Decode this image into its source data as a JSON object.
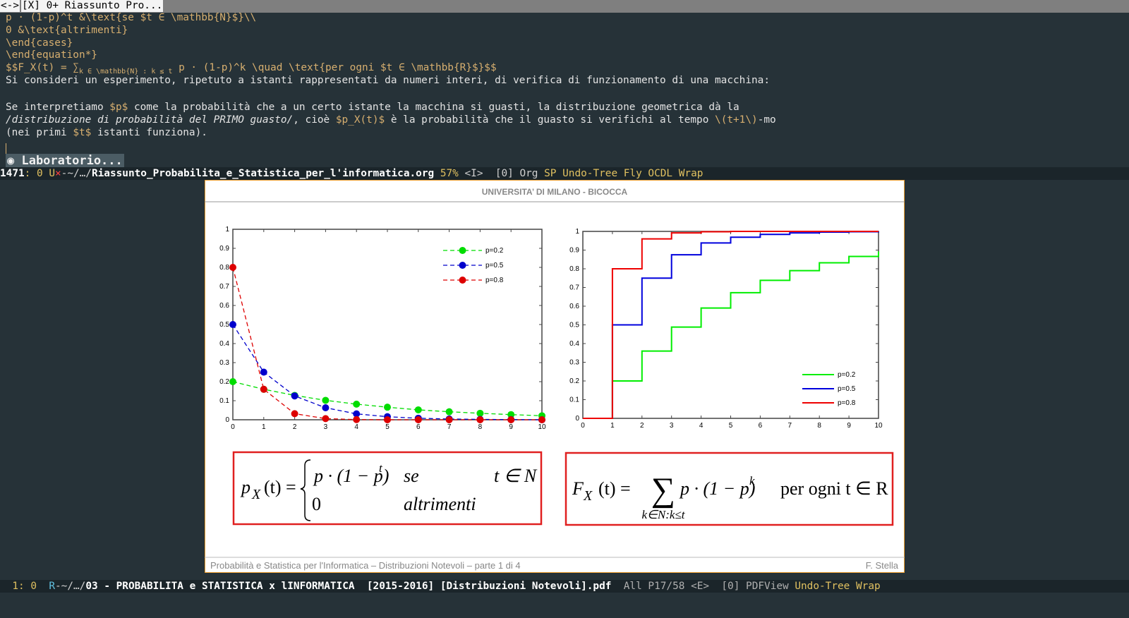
{
  "tab_bar": {
    "nav": "<->",
    "tab": "[X] 0+ Riassunto Pro..."
  },
  "editor": {
    "block1": [
      [
        {
          "text": "p · (1-p)^t &\\text{se $t ∈ \\mathbb{N}$}\\\\",
          "style": "tex"
        }
      ],
      [
        {
          "text": "0 &\\text{altrimenti}",
          "style": "tex"
        }
      ],
      [
        {
          "text": "\\end{cases}",
          "style": "tex"
        }
      ],
      [
        {
          "text": "\\end{equation*}",
          "style": "tex"
        }
      ],
      [
        {
          "text": "$$F_X(t) = ∑",
          "style": "tex"
        },
        {
          "text": "k ∈ \\mathbb{N} : k ≤ t",
          "style": "sub"
        },
        {
          "text": " p · (1-p)^k \\quad \\text{per ogni $t ∈ \\mathbb{R}$}$$",
          "style": "tex"
        }
      ],
      [
        {
          "text": "Si consideri un esperimento, ripetuto a istanti rappresentati da numeri interi, di verifica di funzionamento di una macchina:",
          "style": "plain"
        }
      ]
    ],
    "block2": [
      [
        {
          "text": "Se interpretiamo ",
          "style": "plain"
        },
        {
          "text": "$p$",
          "style": "tex"
        },
        {
          "text": " come la probabilità che a un certo istante la macchina si guasti, la distribuzione geometrica dà la",
          "style": "plain"
        }
      ],
      [
        {
          "text": "/distribuzione di probabilità del PRIMO guasto/",
          "style": "italic"
        },
        {
          "text": ", cioè ",
          "style": "plain"
        },
        {
          "text": "$p_X(t)$",
          "style": "tex"
        },
        {
          "text": " è la probabilità che il guasto si verifichi al tempo ",
          "style": "plain"
        },
        {
          "text": "\\(t+1\\)",
          "style": "tex"
        },
        {
          "text": "-mo",
          "style": "plain"
        }
      ],
      [
        {
          "text": "(nei primi ",
          "style": "plain"
        },
        {
          "text": "$t$",
          "style": "tex"
        },
        {
          "text": " istanti funziona).",
          "style": "plain"
        }
      ]
    ],
    "heading": "◉ Laboratorio..."
  },
  "mode_line_top": [
    {
      "text": "1471",
      "color": "#ffffff",
      "bold": true
    },
    {
      "text": ": 0 ",
      "color": "#e0c060"
    },
    {
      "text": "U",
      "color": "#e0c060"
    },
    {
      "text": "×",
      "color": "#ff4040"
    },
    {
      "text": "-~/…/",
      "color": "#d0d0d0"
    },
    {
      "text": "Riassunto_Probabilita_e_Statistica_per_l'informatica.org",
      "color": "#ffffff",
      "bold": true
    },
    {
      "text": " 57% ",
      "color": "#e0c060"
    },
    {
      "text": "<I>  [0] Org ",
      "color": "#d0d0d0"
    },
    {
      "text": "SP Undo-Tree Fly OCDL Wrap",
      "color": "#e0c060"
    }
  ],
  "mode_line_bottom": [
    {
      "text": "  1",
      "color": "#e0c060"
    },
    {
      "text": ": 0  ",
      "color": "#e0c060"
    },
    {
      "text": "R",
      "color": "#60c0e0"
    },
    {
      "text": "-~/…/",
      "color": "#d0d0d0"
    },
    {
      "text": "03 - PROBABILITA e STATISTICA x lINFORMATICA  [2015-2016] [Distribuzioni Notevoli].pdf",
      "color": "#ffffff",
      "bold": true
    },
    {
      "text": "  All P17/58 <E>  [0] PDFView ",
      "color": "#b0b0b0"
    },
    {
      "text": "Undo-Tree Wrap",
      "color": "#e0c060"
    }
  ],
  "slide": {
    "header": "UNIVERSITA’ DI MILANO - BICOCCA",
    "footer_left": "Probabilità e Statistica per l'Informatica – Distribuzioni Notevoli – parte 1 di 4",
    "footer_right": "F. Stella",
    "formula_pmf": {
      "lhs": "p",
      "lhs_sub": "X",
      "lhs_arg": "(t) =",
      "case1": "p · (1 − p)",
      "case1_exp": "t",
      "case1_cond": "se",
      "case1_set": "t ∈ N",
      "case2": "0",
      "case2_cond": "altrimenti"
    },
    "formula_cdf": {
      "lhs": "F",
      "lhs_sub": "X",
      "lhs_arg": "(t) =",
      "sum": "∑",
      "sum_sub": "k∈N:k≤t",
      "term": "p · (1 − p)",
      "term_exp": "k",
      "cond": "per ogni t ∈ R"
    }
  },
  "chart_data": [
    {
      "type": "line",
      "markers": true,
      "dashed": true,
      "legend": "upper right",
      "x": [
        0,
        1,
        2,
        3,
        4,
        5,
        6,
        7,
        8,
        9,
        10
      ],
      "xlim": [
        0,
        10
      ],
      "xticks": [
        0,
        1,
        2,
        3,
        4,
        5,
        6,
        7,
        8,
        9,
        10
      ],
      "ylim": [
        0,
        1
      ],
      "yticks": [
        0,
        0.1,
        0.2,
        0.3,
        0.4,
        0.5,
        0.6,
        0.7,
        0.8,
        0.9,
        1
      ],
      "series": [
        {
          "name": "p=0.2",
          "color": "#00dd00",
          "values": [
            0.2,
            0.16,
            0.128,
            0.102,
            0.082,
            0.066,
            0.052,
            0.042,
            0.034,
            0.027,
            0.021
          ]
        },
        {
          "name": "p=0.5",
          "color": "#0000cc",
          "values": [
            0.5,
            0.25,
            0.125,
            0.063,
            0.031,
            0.016,
            0.008,
            0.004,
            0.002,
            0.001,
            0.0
          ]
        },
        {
          "name": "p=0.8",
          "color": "#dd0000",
          "values": [
            0.8,
            0.16,
            0.032,
            0.006,
            0.001,
            0.0,
            0.0,
            0.0,
            0.0,
            0.0,
            0.0
          ]
        }
      ]
    },
    {
      "type": "step",
      "legend": "lower right",
      "x": [
        0,
        1,
        2,
        3,
        4,
        5,
        6,
        7,
        8,
        9,
        10
      ],
      "xlim": [
        0,
        10
      ],
      "xticks": [
        0,
        1,
        2,
        3,
        4,
        5,
        6,
        7,
        8,
        9,
        10
      ],
      "ylim": [
        0,
        1
      ],
      "yticks": [
        0,
        0.1,
        0.2,
        0.3,
        0.4,
        0.5,
        0.6,
        0.7,
        0.8,
        0.9,
        1
      ],
      "series": [
        {
          "name": "p=0.2",
          "color": "#00ee00",
          "values": [
            0,
            0.2,
            0.36,
            0.488,
            0.59,
            0.672,
            0.738,
            0.79,
            0.832,
            0.866,
            0.893
          ]
        },
        {
          "name": "p=0.5",
          "color": "#0000dd",
          "values": [
            0,
            0.5,
            0.75,
            0.875,
            0.938,
            0.969,
            0.984,
            0.992,
            0.996,
            0.998,
            0.999
          ]
        },
        {
          "name": "p=0.8",
          "color": "#ee0000",
          "values": [
            0,
            0.8,
            0.96,
            0.992,
            0.998,
            1,
            1,
            1,
            1,
            1,
            1
          ]
        }
      ]
    }
  ]
}
